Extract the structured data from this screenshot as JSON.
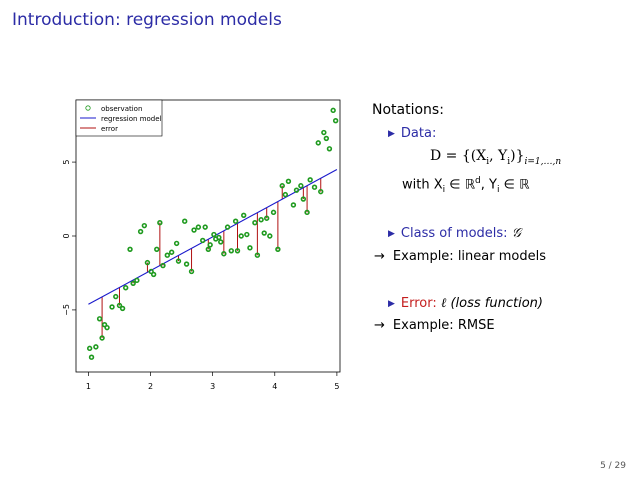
{
  "slide": {
    "title": "Introduction: regression models",
    "page": "5 / 29"
  },
  "notations": {
    "heading": "Notations:",
    "data_label": "Data:",
    "data_formula": "D = {(X",
    "data_formula_i": "i",
    "data_formula_mid": ", Y",
    "data_formula_i2": "i",
    "data_formula_end": ")}",
    "data_formula_sub": "i=1,…,n",
    "with_text": "with X",
    "with_i": "i",
    "with_in": " ∈ ℝ",
    "with_d": "d",
    "with_y": ", Y",
    "with_i2": "i",
    "with_in2": " ∈ ℝ",
    "class_label": "Class of models:",
    "class_symbol": "𝒢",
    "example1": "Example: linear models",
    "error_label": "Error:",
    "error_symbol": "ℓ",
    "error_paren": "(loss function)",
    "example2": "Example: RMSE",
    "arrow": "→",
    "bullet": "▶"
  },
  "chart_data": {
    "type": "scatter",
    "legend": {
      "position": "top-left",
      "entries": [
        "observation",
        "regression model",
        "error"
      ]
    },
    "colors": {
      "observation": "#1f9a1f",
      "model": "#1a1acc",
      "error": "#b01010"
    },
    "xlim": [
      0.8,
      5.05
    ],
    "ylim": [
      -9.2,
      9.2
    ],
    "xticks": [
      1,
      2,
      3,
      4,
      5
    ],
    "yticks": [
      -5,
      0,
      5
    ],
    "model": {
      "intercept": -6.9,
      "slope": 2.28
    },
    "observations": [
      {
        "x": 1.02,
        "y": -7.6
      },
      {
        "x": 1.05,
        "y": -8.2
      },
      {
        "x": 1.12,
        "y": -7.5
      },
      {
        "x": 1.18,
        "y": -5.6
      },
      {
        "x": 1.22,
        "y": -6.9
      },
      {
        "x": 1.26,
        "y": -6.0
      },
      {
        "x": 1.3,
        "y": -6.2
      },
      {
        "x": 1.38,
        "y": -4.8
      },
      {
        "x": 1.44,
        "y": -4.1
      },
      {
        "x": 1.5,
        "y": -4.7
      },
      {
        "x": 1.55,
        "y": -4.9
      },
      {
        "x": 1.6,
        "y": -3.5
      },
      {
        "x": 1.67,
        "y": -0.9
      },
      {
        "x": 1.72,
        "y": -3.2
      },
      {
        "x": 1.78,
        "y": -3.0
      },
      {
        "x": 1.84,
        "y": 0.3
      },
      {
        "x": 1.9,
        "y": 0.7
      },
      {
        "x": 1.95,
        "y": -1.8
      },
      {
        "x": 2.01,
        "y": -2.4
      },
      {
        "x": 2.05,
        "y": -2.6
      },
      {
        "x": 2.1,
        "y": -0.9
      },
      {
        "x": 2.15,
        "y": 0.9
      },
      {
        "x": 2.2,
        "y": -2.0
      },
      {
        "x": 2.27,
        "y": -1.3
      },
      {
        "x": 2.34,
        "y": -1.1
      },
      {
        "x": 2.42,
        "y": -0.5
      },
      {
        "x": 2.45,
        "y": -1.7
      },
      {
        "x": 2.55,
        "y": 1.0
      },
      {
        "x": 2.58,
        "y": -1.9
      },
      {
        "x": 2.66,
        "y": -2.4
      },
      {
        "x": 2.7,
        "y": 0.4
      },
      {
        "x": 2.77,
        "y": 0.6
      },
      {
        "x": 2.84,
        "y": -0.3
      },
      {
        "x": 2.88,
        "y": 0.6
      },
      {
        "x": 2.93,
        "y": -0.9
      },
      {
        "x": 2.96,
        "y": -0.6
      },
      {
        "x": 3.02,
        "y": 0.1
      },
      {
        "x": 3.05,
        "y": -0.2
      },
      {
        "x": 3.1,
        "y": -0.1
      },
      {
        "x": 3.13,
        "y": -0.4
      },
      {
        "x": 3.18,
        "y": -1.2
      },
      {
        "x": 3.24,
        "y": 0.6
      },
      {
        "x": 3.3,
        "y": -1.0
      },
      {
        "x": 3.37,
        "y": 1.0
      },
      {
        "x": 3.4,
        "y": -1.0
      },
      {
        "x": 3.46,
        "y": 0.0
      },
      {
        "x": 3.5,
        "y": 1.4
      },
      {
        "x": 3.55,
        "y": 0.1
      },
      {
        "x": 3.6,
        "y": -0.8
      },
      {
        "x": 3.68,
        "y": 0.9
      },
      {
        "x": 3.72,
        "y": -1.3
      },
      {
        "x": 3.78,
        "y": 1.1
      },
      {
        "x": 3.83,
        "y": 0.2
      },
      {
        "x": 3.87,
        "y": 1.2
      },
      {
        "x": 3.92,
        "y": 0.0
      },
      {
        "x": 3.98,
        "y": 1.6
      },
      {
        "x": 4.05,
        "y": -0.9
      },
      {
        "x": 4.12,
        "y": 3.4
      },
      {
        "x": 4.17,
        "y": 2.8
      },
      {
        "x": 4.22,
        "y": 3.7
      },
      {
        "x": 4.3,
        "y": 2.1
      },
      {
        "x": 4.35,
        "y": 3.1
      },
      {
        "x": 4.42,
        "y": 3.4
      },
      {
        "x": 4.46,
        "y": 2.5
      },
      {
        "x": 4.52,
        "y": 1.6
      },
      {
        "x": 4.57,
        "y": 3.8
      },
      {
        "x": 4.64,
        "y": 3.3
      },
      {
        "x": 4.7,
        "y": 6.3
      },
      {
        "x": 4.74,
        "y": 3.0
      },
      {
        "x": 4.79,
        "y": 7.0
      },
      {
        "x": 4.83,
        "y": 6.6
      },
      {
        "x": 4.88,
        "y": 5.9
      },
      {
        "x": 4.94,
        "y": 8.5
      },
      {
        "x": 4.98,
        "y": 7.8
      }
    ],
    "errors": [
      {
        "x": 1.22,
        "y": -6.9
      },
      {
        "x": 1.5,
        "y": -4.7
      },
      {
        "x": 1.72,
        "y": -3.2
      },
      {
        "x": 1.95,
        "y": -1.8
      },
      {
        "x": 2.2,
        "y": -2.0
      },
      {
        "x": 2.15,
        "y": 0.9
      },
      {
        "x": 2.45,
        "y": -1.7
      },
      {
        "x": 2.66,
        "y": -2.4
      },
      {
        "x": 2.93,
        "y": -0.9
      },
      {
        "x": 3.18,
        "y": -1.2
      },
      {
        "x": 3.4,
        "y": -1.0
      },
      {
        "x": 3.72,
        "y": -1.3
      },
      {
        "x": 3.87,
        "y": 1.2
      },
      {
        "x": 4.05,
        "y": -0.9
      },
      {
        "x": 4.12,
        "y": 3.4
      },
      {
        "x": 4.46,
        "y": 2.5
      },
      {
        "x": 4.74,
        "y": 3.0
      },
      {
        "x": 4.52,
        "y": 1.6
      }
    ]
  }
}
